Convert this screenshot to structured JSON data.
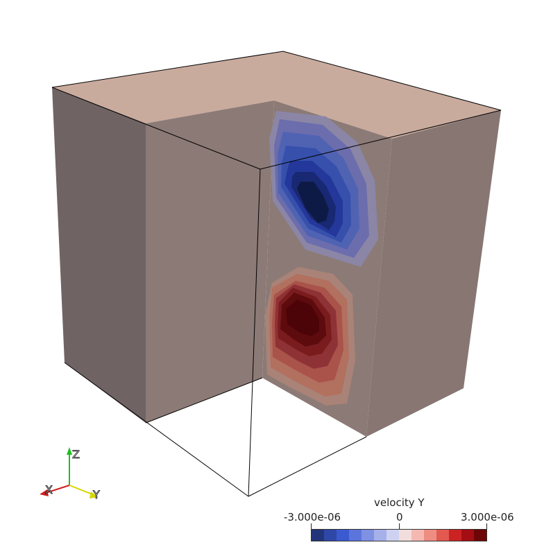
{
  "scene": {
    "field": "velocity Y",
    "wall_color_left": "#6f6363",
    "wall_color_inner": "#8c7a76",
    "wall_color_right": "#877672",
    "top_color": "#c9ab9e",
    "negative_core": "#0d1a45",
    "positive_core": "#4d0408"
  },
  "orientation_axes": {
    "x_label": "X",
    "y_label": "Y",
    "z_label": "Z",
    "x_color": "#d11d1d",
    "y_color": "#d6d600",
    "z_color": "#1fbf1f"
  },
  "colorbar": {
    "title": "velocity Y",
    "min_label": "-3.000e-06",
    "mid_label": "0",
    "max_label": "3.000e-06",
    "range": [
      -3e-06,
      3e-06
    ],
    "colors": [
      "#23357a",
      "#2f47a6",
      "#3b5ad0",
      "#5b75dd",
      "#7e91e3",
      "#a6b1ea",
      "#cdd2f0",
      "#f2dddd",
      "#f4b8b0",
      "#ee8d82",
      "#e2594f",
      "#cb2323",
      "#a40d14",
      "#6e0507"
    ]
  }
}
